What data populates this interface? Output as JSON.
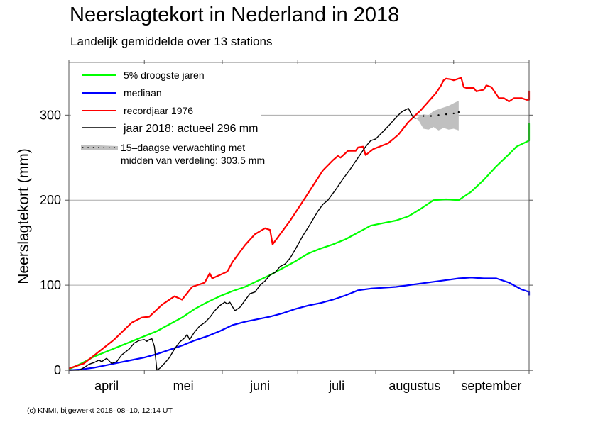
{
  "chart_data": {
    "type": "line",
    "title": "Neerslagtekort in Nederland in 2018",
    "subtitle": "Landelijk gemiddelde over 13 stations",
    "xlabel": "",
    "ylabel": "Neerslagtekort (mm)",
    "x_unit": "days since 1 April",
    "xlim": [
      0,
      183
    ],
    "ylim": [
      0,
      362
    ],
    "y_ticks": [
      0,
      100,
      200,
      300
    ],
    "y_tick_labels": [
      "0",
      "100",
      "200",
      "300"
    ],
    "y_gridlines": [
      100,
      200,
      300
    ],
    "month_boundaries": [
      0,
      30,
      61,
      91,
      122,
      153,
      183
    ],
    "month_labels": [
      "april",
      "mei",
      "juni",
      "juli",
      "augustus",
      "september"
    ],
    "legend_position": "top-left",
    "series": [
      {
        "name": "5% droogste jaren",
        "color": "#00ff00",
        "points": [
          [
            0,
            1
          ],
          [
            5,
            8
          ],
          [
            10,
            16
          ],
          [
            15,
            22
          ],
          [
            20,
            28
          ],
          [
            25,
            34
          ],
          [
            30,
            40
          ],
          [
            35,
            46
          ],
          [
            40,
            54
          ],
          [
            45,
            62
          ],
          [
            50,
            72
          ],
          [
            55,
            80
          ],
          [
            60,
            87
          ],
          [
            65,
            93
          ],
          [
            70,
            98
          ],
          [
            75,
            105
          ],
          [
            80,
            112
          ],
          [
            85,
            120
          ],
          [
            90,
            128
          ],
          [
            95,
            137
          ],
          [
            100,
            143
          ],
          [
            105,
            148
          ],
          [
            110,
            154
          ],
          [
            115,
            162
          ],
          [
            120,
            170
          ],
          [
            125,
            173
          ],
          [
            130,
            176
          ],
          [
            135,
            181
          ],
          [
            140,
            190
          ],
          [
            145,
            200
          ],
          [
            150,
            201
          ],
          [
            155,
            200
          ],
          [
            160,
            210
          ],
          [
            165,
            224
          ],
          [
            170,
            240
          ],
          [
            175,
            254
          ],
          [
            178,
            263
          ],
          [
            183,
            270
          ],
          [
            188,
            280
          ],
          [
            192,
            286
          ],
          [
            194,
            290
          ],
          [
            197,
            289
          ],
          [
            202,
            282
          ],
          [
            206,
            276
          ]
        ]
      },
      {
        "name": "mediaan",
        "color": "#0000ff",
        "points": [
          [
            0,
            0
          ],
          [
            5,
            1
          ],
          [
            10,
            3
          ],
          [
            15,
            6
          ],
          [
            20,
            9
          ],
          [
            25,
            12
          ],
          [
            30,
            15
          ],
          [
            35,
            19
          ],
          [
            40,
            24
          ],
          [
            45,
            29
          ],
          [
            50,
            35
          ],
          [
            55,
            40
          ],
          [
            60,
            46
          ],
          [
            65,
            53
          ],
          [
            70,
            57
          ],
          [
            75,
            60
          ],
          [
            80,
            63
          ],
          [
            85,
            67
          ],
          [
            90,
            72
          ],
          [
            95,
            76
          ],
          [
            100,
            79
          ],
          [
            105,
            83
          ],
          [
            110,
            88
          ],
          [
            115,
            94
          ],
          [
            120,
            96
          ],
          [
            125,
            97
          ],
          [
            130,
            98
          ],
          [
            135,
            100
          ],
          [
            140,
            102
          ],
          [
            145,
            104
          ],
          [
            150,
            106
          ],
          [
            155,
            108
          ],
          [
            160,
            109
          ],
          [
            165,
            108
          ],
          [
            170,
            108
          ],
          [
            175,
            103
          ],
          [
            180,
            95
          ],
          [
            183,
            92
          ],
          [
            190,
            91
          ],
          [
            195,
            91
          ],
          [
            200,
            90
          ],
          [
            206,
            88
          ]
        ]
      },
      {
        "name": "recordjaar 1976",
        "color": "#ff0000",
        "points": [
          [
            0,
            2
          ],
          [
            6,
            8
          ],
          [
            12,
            22
          ],
          [
            18,
            36
          ],
          [
            25,
            56
          ],
          [
            29,
            62
          ],
          [
            32,
            63
          ],
          [
            37,
            77
          ],
          [
            42,
            87
          ],
          [
            45,
            83
          ],
          [
            49,
            98
          ],
          [
            54,
            103
          ],
          [
            56,
            114
          ],
          [
            57,
            108
          ],
          [
            60,
            112
          ],
          [
            63,
            116
          ],
          [
            65,
            127
          ],
          [
            70,
            147
          ],
          [
            74,
            160
          ],
          [
            78,
            167
          ],
          [
            80,
            165
          ],
          [
            81,
            148
          ],
          [
            84,
            160
          ],
          [
            88,
            176
          ],
          [
            94,
            203
          ],
          [
            101,
            235
          ],
          [
            105,
            247
          ],
          [
            107,
            252
          ],
          [
            108,
            250
          ],
          [
            111,
            258
          ],
          [
            114,
            258
          ],
          [
            115,
            262
          ],
          [
            117,
            263
          ],
          [
            118,
            253
          ],
          [
            121,
            260
          ],
          [
            127,
            267
          ],
          [
            131,
            277
          ],
          [
            135,
            292
          ],
          [
            140,
            306
          ],
          [
            146,
            326
          ],
          [
            148,
            335
          ],
          [
            149,
            341
          ],
          [
            150,
            343
          ],
          [
            152,
            342
          ],
          [
            153,
            341
          ],
          [
            155,
            343
          ],
          [
            156,
            344
          ],
          [
            157,
            333
          ],
          [
            158,
            332
          ],
          [
            161,
            332
          ],
          [
            162,
            328
          ],
          [
            165,
            330
          ],
          [
            166,
            335
          ],
          [
            168,
            333
          ],
          [
            171,
            320
          ],
          [
            173,
            320
          ],
          [
            175,
            316
          ],
          [
            177,
            320
          ],
          [
            180,
            320
          ],
          [
            182,
            318
          ],
          [
            185,
            318
          ],
          [
            187,
            322
          ],
          [
            189,
            326
          ],
          [
            190,
            327
          ],
          [
            192,
            328
          ],
          [
            194,
            327
          ],
          [
            196,
            325
          ],
          [
            198,
            322
          ]
        ]
      },
      {
        "name": "jaar 2018",
        "color": "#000000",
        "points": [
          [
            0,
            0
          ],
          [
            4,
            0
          ],
          [
            6,
            3
          ],
          [
            8,
            7
          ],
          [
            10,
            9
          ],
          [
            12,
            12
          ],
          [
            13,
            10
          ],
          [
            15,
            14
          ],
          [
            17,
            8
          ],
          [
            19,
            10
          ],
          [
            21,
            18
          ],
          [
            24,
            25
          ],
          [
            26,
            32
          ],
          [
            28,
            35
          ],
          [
            30,
            36
          ],
          [
            31,
            34
          ],
          [
            32,
            36
          ],
          [
            33,
            37
          ],
          [
            34,
            28
          ],
          [
            35,
            0
          ],
          [
            36,
            2
          ],
          [
            38,
            8
          ],
          [
            40,
            15
          ],
          [
            42,
            25
          ],
          [
            44,
            33
          ],
          [
            46,
            38
          ],
          [
            47,
            42
          ],
          [
            48,
            36
          ],
          [
            50,
            45
          ],
          [
            52,
            52
          ],
          [
            54,
            56
          ],
          [
            56,
            62
          ],
          [
            58,
            70
          ],
          [
            60,
            76
          ],
          [
            62,
            80
          ],
          [
            63,
            78
          ],
          [
            64,
            80
          ],
          [
            65,
            75
          ],
          [
            66,
            70
          ],
          [
            68,
            74
          ],
          [
            70,
            82
          ],
          [
            72,
            90
          ],
          [
            74,
            92
          ],
          [
            76,
            100
          ],
          [
            78,
            105
          ],
          [
            80,
            112
          ],
          [
            82,
            115
          ],
          [
            84,
            122
          ],
          [
            86,
            125
          ],
          [
            88,
            132
          ],
          [
            90,
            142
          ],
          [
            93,
            158
          ],
          [
            96,
            172
          ],
          [
            99,
            187
          ],
          [
            101,
            195
          ],
          [
            103,
            200
          ],
          [
            106,
            212
          ],
          [
            109,
            225
          ],
          [
            112,
            237
          ],
          [
            115,
            250
          ],
          [
            118,
            263
          ],
          [
            120,
            270
          ],
          [
            122,
            272
          ],
          [
            124,
            278
          ],
          [
            127,
            287
          ],
          [
            130,
            297
          ],
          [
            132,
            303
          ],
          [
            133,
            305
          ],
          [
            135,
            308
          ],
          [
            136,
            302
          ],
          [
            137,
            297
          ],
          [
            138,
            296
          ]
        ]
      }
    ],
    "forecast": {
      "name": "15-daagse verwachting",
      "median_end": 303.5,
      "median": [
        [
          138,
          296
        ],
        [
          141,
          299
        ],
        [
          144,
          299
        ],
        [
          147,
          300
        ],
        [
          150,
          301
        ],
        [
          153,
          302
        ],
        [
          155,
          303.5
        ]
      ],
      "band_upper": [
        [
          138,
          296
        ],
        [
          139,
          298
        ],
        [
          141,
          301
        ],
        [
          143,
          300
        ],
        [
          145,
          305
        ],
        [
          148,
          308
        ],
        [
          151,
          311
        ],
        [
          153,
          314
        ],
        [
          155,
          317
        ]
      ],
      "band_lower": [
        [
          138,
          296
        ],
        [
          139,
          294
        ],
        [
          141,
          284
        ],
        [
          143,
          283
        ],
        [
          145,
          286
        ],
        [
          147,
          282
        ],
        [
          149,
          285
        ],
        [
          151,
          283
        ],
        [
          153,
          284
        ],
        [
          155,
          282
        ]
      ]
    },
    "annotations": [
      "jaar 2018: actueel 296 mm",
      "15-daagse verwachting met midden van verdeling: 303.5 mm"
    ]
  },
  "header": {
    "title": "Neerslagtekort in Nederland in 2018",
    "subtitle": "Landelijk gemiddelde over 13 stations"
  },
  "legend": {
    "items": [
      {
        "label": "5% droogste jaren",
        "color": "#00ff00"
      },
      {
        "label": "mediaan",
        "color": "#0000ff"
      },
      {
        "label": "recordjaar 1976",
        "color": "#ff0000"
      },
      {
        "label": "jaar 2018: actueel 296 mm",
        "color": "#000000"
      }
    ],
    "forecast_line1": "15–daagse verwachting met",
    "forecast_line2": "midden van verdeling: 303.5 mm"
  },
  "footer": {
    "credit": "(c) KNMI, bijgewerkt 2018–08–10, 12:14 UT"
  },
  "colors": {
    "gridline": "#aaaaaa",
    "axis": "#555555",
    "band": "#c0c0c0"
  }
}
